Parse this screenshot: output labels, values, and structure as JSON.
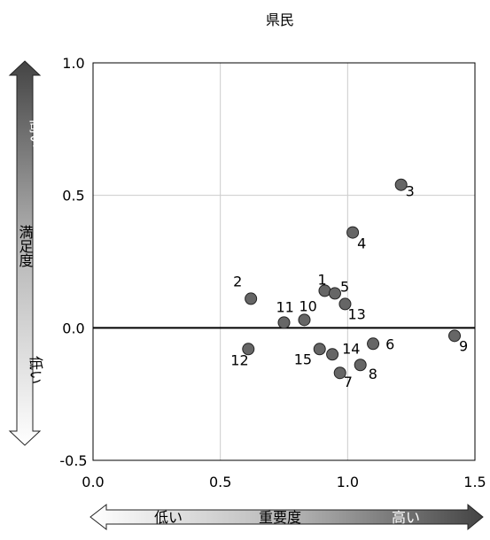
{
  "chart_data": {
    "type": "scatter",
    "title": "県民",
    "xlim": [
      0.0,
      1.5
    ],
    "ylim": [
      -0.5,
      1.0
    ],
    "x_ticks": [
      0.0,
      0.5,
      1.0,
      1.5
    ],
    "y_ticks": [
      -0.5,
      0.0,
      0.5,
      1.0
    ],
    "x_tick_labels": [
      "0.0",
      "0.5",
      "1.0",
      "1.5"
    ],
    "y_tick_labels": [
      "-0.5",
      "0.0",
      "0.5",
      "1.0"
    ],
    "grid": true,
    "reference_line_y": 0.0,
    "point_color": "#666666",
    "points": [
      {
        "label": "1",
        "x": 0.91,
        "y": 0.14
      },
      {
        "label": "2",
        "x": 0.62,
        "y": 0.11
      },
      {
        "label": "3",
        "x": 1.21,
        "y": 0.54
      },
      {
        "label": "4",
        "x": 1.02,
        "y": 0.36
      },
      {
        "label": "5",
        "x": 0.95,
        "y": 0.13
      },
      {
        "label": "6",
        "x": 1.1,
        "y": -0.06
      },
      {
        "label": "7",
        "x": 0.97,
        "y": -0.17
      },
      {
        "label": "8",
        "x": 1.05,
        "y": -0.14
      },
      {
        "label": "9",
        "x": 1.42,
        "y": -0.03
      },
      {
        "label": "10",
        "x": 0.83,
        "y": 0.03
      },
      {
        "label": "11",
        "x": 0.75,
        "y": 0.02
      },
      {
        "label": "12",
        "x": 0.61,
        "y": -0.08
      },
      {
        "label": "13",
        "x": 0.99,
        "y": 0.09
      },
      {
        "label": "14",
        "x": 0.94,
        "y": -0.1
      },
      {
        "label": "15",
        "x": 0.89,
        "y": -0.08
      }
    ],
    "y_axis_arrow": {
      "label": "満足度",
      "high_label": "高い",
      "low_label": "低い"
    },
    "x_axis_arrow": {
      "label": "重要度",
      "low_label": "低い",
      "high_label": "高い"
    }
  }
}
